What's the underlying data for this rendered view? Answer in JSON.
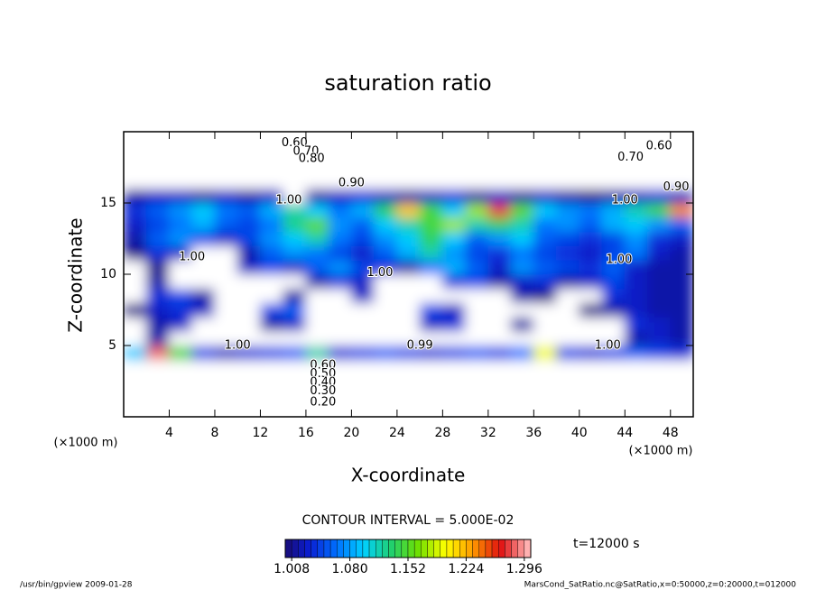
{
  "chart_data": {
    "type": "heatmap",
    "title": "saturation ratio",
    "x_label": "X-coordinate",
    "y_label": "Z-coordinate",
    "x_unit": "(×1000 m)",
    "y_unit": "(×1000 m)",
    "contour_interval": "CONTOUR INTERVAL = 5.000E-02",
    "time": "t=12000 s",
    "footer_left": "/usr/bin/gpview  2009-01-28",
    "footer_right": "MarsCond_SatRatio.nc@SatRatio,x=0:50000,z=0:20000,t=012000",
    "xlim": [
      0,
      50
    ],
    "ylim": [
      0,
      20
    ],
    "xticks": [
      4,
      8,
      12,
      16,
      20,
      24,
      28,
      32,
      36,
      40,
      44,
      48
    ],
    "yticks": [
      5,
      10,
      15
    ],
    "below_color": "#ffffff",
    "colormap": [
      "#1b0a6a",
      "#0a1ed2",
      "#0070ff",
      "#00d0ff",
      "#20d070",
      "#70e000",
      "#ffff00",
      "#ff9a00",
      "#e01010",
      "#ffb0b0"
    ],
    "colorbar": {
      "lim": [
        1.0,
        1.304
      ],
      "step": 0.008,
      "ticks": [
        1.008,
        {
          "value": 1.08,
          "label": "1.080"
        },
        1.152,
        1.224,
        1.296
      ]
    },
    "x": [
      1,
      3,
      5,
      7,
      9,
      11,
      13,
      15,
      17,
      19,
      21,
      23,
      25,
      27,
      29,
      31,
      33,
      35,
      37,
      39,
      41,
      43,
      45,
      47,
      49
    ],
    "z": [
      0.5,
      1.5,
      2.5,
      3.5,
      4.5,
      5.5,
      6.5,
      7.5,
      8.5,
      9.5,
      10.5,
      11.5,
      12.5,
      13.5,
      14.5,
      15.5,
      16.5,
      17.5,
      18.5,
      19.5
    ],
    "values": [
      [
        0.2,
        0.2,
        0.2,
        0.2,
        0.2,
        0.2,
        0.2,
        0.2,
        0.2,
        0.2,
        0.2,
        0.2,
        0.2,
        0.2,
        0.2,
        0.2,
        0.2,
        0.2,
        0.2,
        0.2,
        0.2,
        0.2,
        0.2,
        0.2,
        0.2
      ],
      [
        0.4,
        0.4,
        0.4,
        0.4,
        0.4,
        0.4,
        0.4,
        0.4,
        0.4,
        0.4,
        0.4,
        0.4,
        0.4,
        0.4,
        0.4,
        0.4,
        0.4,
        0.4,
        0.4,
        0.4,
        0.4,
        0.4,
        0.4,
        0.4,
        0.4
      ],
      [
        0.6,
        0.6,
        0.6,
        0.6,
        0.6,
        0.6,
        0.6,
        0.6,
        0.6,
        0.6,
        0.6,
        0.6,
        0.6,
        0.6,
        0.6,
        0.6,
        0.6,
        0.6,
        0.6,
        0.6,
        0.6,
        0.6,
        0.6,
        0.6,
        0.6
      ],
      [
        0.85,
        0.85,
        0.85,
        0.85,
        0.85,
        0.85,
        0.85,
        0.85,
        0.85,
        0.85,
        0.85,
        0.85,
        0.85,
        0.85,
        0.85,
        0.85,
        0.85,
        0.85,
        0.85,
        0.85,
        0.85,
        0.85,
        0.85,
        0.85,
        0.85
      ],
      [
        1.1,
        1.29,
        1.15,
        1.05,
        1.03,
        1.04,
        1.05,
        1.06,
        1.12,
        1.04,
        1.05,
        1.06,
        1.05,
        1.04,
        1.05,
        1.06,
        1.05,
        1.07,
        1.2,
        1.05,
        1.04,
        1.05,
        1.06,
        1.05,
        1.04
      ],
      [
        1.0,
        1.02,
        1.0,
        0.99,
        0.98,
        0.99,
        1.0,
        0.99,
        0.98,
        0.99,
        0.99,
        0.98,
        0.99,
        1.0,
        0.99,
        0.98,
        0.99,
        1.0,
        0.99,
        0.98,
        0.99,
        1.0,
        1.02,
        1.03,
        1.02
      ],
      [
        1.0,
        1.02,
        1.03,
        0.99,
        0.98,
        0.99,
        1.02,
        1.03,
        0.99,
        0.98,
        0.99,
        1.0,
        0.99,
        1.03,
        1.04,
        1.0,
        0.99,
        1.02,
        0.99,
        0.98,
        0.99,
        1.0,
        1.04,
        1.03,
        1.02
      ],
      [
        1.01,
        1.03,
        1.04,
        1.03,
        1.0,
        0.99,
        1.05,
        1.06,
        1.0,
        0.99,
        0.98,
        0.99,
        1.0,
        1.05,
        1.03,
        0.99,
        0.98,
        0.99,
        1.0,
        0.99,
        1.01,
        1.02,
        1.03,
        1.02,
        1.02
      ],
      [
        1.0,
        1.04,
        1.05,
        1.02,
        1.0,
        0.99,
        1.0,
        1.02,
        0.99,
        0.98,
        1.03,
        0.99,
        0.98,
        0.99,
        1.0,
        0.99,
        1.0,
        1.02,
        1.01,
        1.0,
        0.99,
        1.04,
        1.03,
        1.02,
        1.02
      ],
      [
        0.99,
        1.02,
        1.0,
        0.99,
        0.98,
        0.99,
        1.0,
        0.99,
        1.02,
        1.04,
        1.03,
        0.99,
        0.98,
        0.99,
        1.04,
        1.05,
        1.02,
        1.03,
        1.04,
        1.02,
        1.03,
        1.05,
        1.03,
        1.02,
        1.02
      ],
      [
        1.0,
        1.01,
        0.99,
        0.98,
        0.99,
        1.03,
        1.05,
        1.03,
        1.06,
        1.08,
        1.05,
        1.04,
        1.02,
        1.07,
        1.09,
        1.06,
        1.03,
        1.08,
        1.06,
        1.05,
        1.04,
        1.06,
        1.03,
        1.02,
        1.02
      ],
      [
        1.01,
        1.04,
        1.03,
        1.0,
        0.99,
        1.02,
        1.06,
        1.08,
        1.07,
        1.05,
        1.03,
        1.06,
        1.09,
        1.12,
        1.08,
        1.05,
        1.04,
        1.07,
        1.05,
        1.04,
        1.03,
        1.05,
        1.07,
        1.03,
        1.02
      ],
      [
        1.02,
        1.06,
        1.08,
        1.05,
        1.03,
        1.05,
        1.08,
        1.1,
        1.12,
        1.07,
        1.05,
        1.08,
        1.1,
        1.14,
        1.1,
        1.06,
        1.08,
        1.1,
        1.06,
        1.05,
        1.04,
        1.05,
        1.08,
        1.04,
        1.03
      ],
      [
        1.03,
        1.05,
        1.07,
        1.09,
        1.06,
        1.05,
        1.07,
        1.13,
        1.16,
        1.08,
        1.06,
        1.1,
        1.12,
        1.15,
        1.18,
        1.12,
        1.14,
        1.12,
        1.07,
        1.08,
        1.06,
        1.09,
        1.1,
        1.08,
        1.06
      ],
      [
        1.04,
        1.06,
        1.08,
        1.1,
        1.07,
        1.06,
        1.09,
        1.12,
        1.1,
        1.07,
        1.09,
        1.14,
        1.22,
        1.15,
        1.1,
        1.18,
        1.28,
        1.16,
        1.1,
        1.08,
        1.07,
        1.09,
        1.12,
        1.15,
        1.24
      ],
      [
        1.02,
        1.03,
        1.03,
        1.02,
        1.03,
        1.02,
        1.03,
        0.99,
        1.02,
        1.03,
        1.04,
        1.03,
        1.02,
        1.03,
        1.04,
        1.02,
        1.03,
        1.02,
        1.03,
        1.02,
        1.01,
        1.02,
        1.03,
        1.04,
        1.03
      ],
      [
        0.95,
        0.95,
        0.95,
        0.95,
        0.95,
        0.95,
        0.95,
        0.95,
        0.95,
        0.95,
        0.95,
        0.95,
        0.95,
        0.95,
        0.95,
        0.95,
        0.95,
        0.95,
        0.95,
        0.95,
        0.95,
        0.95,
        0.95,
        0.95,
        0.95
      ],
      [
        0.9,
        0.9,
        0.9,
        0.9,
        0.9,
        0.9,
        0.9,
        0.9,
        0.9,
        0.9,
        0.9,
        0.9,
        0.9,
        0.9,
        0.9,
        0.9,
        0.9,
        0.9,
        0.9,
        0.9,
        0.9,
        0.9,
        0.9,
        0.9,
        0.9
      ],
      [
        0.8,
        0.8,
        0.8,
        0.8,
        0.8,
        0.8,
        0.8,
        0.8,
        0.8,
        0.8,
        0.8,
        0.8,
        0.8,
        0.8,
        0.8,
        0.8,
        0.8,
        0.8,
        0.8,
        0.8,
        0.8,
        0.8,
        0.8,
        0.8,
        0.8
      ],
      [
        0.7,
        0.7,
        0.7,
        0.7,
        0.7,
        0.7,
        0.7,
        0.7,
        0.7,
        0.7,
        0.7,
        0.7,
        0.7,
        0.7,
        0.7,
        0.7,
        0.7,
        0.7,
        0.7,
        0.7,
        0.7,
        0.7,
        0.7,
        0.7,
        0.7
      ]
    ],
    "contour_labels": [
      {
        "label": "0.60",
        "x": 15,
        "z": 19.2
      },
      {
        "label": "0.70",
        "x": 16,
        "z": 18.6
      },
      {
        "label": "0.80",
        "x": 16.5,
        "z": 18.1
      },
      {
        "label": "0.90",
        "x": 20,
        "z": 16.4
      },
      {
        "label": "0.60",
        "x": 47,
        "z": 19
      },
      {
        "label": "0.70",
        "x": 44.5,
        "z": 18.2
      },
      {
        "label": "0.90",
        "x": 48.5,
        "z": 16.1
      },
      {
        "label": "1.00",
        "x": 14.5,
        "z": 15.2
      },
      {
        "label": "1.00",
        "x": 44,
        "z": 15.2
      },
      {
        "label": "1.00",
        "x": 6,
        "z": 11.2
      },
      {
        "label": "1.00",
        "x": 22.5,
        "z": 10.1
      },
      {
        "label": "1.00",
        "x": 43.5,
        "z": 11
      },
      {
        "label": "1.00",
        "x": 10,
        "z": 5
      },
      {
        "label": "0.99",
        "x": 26,
        "z": 5
      },
      {
        "label": "1.00",
        "x": 42.5,
        "z": 5
      },
      {
        "label": "0.60",
        "x": 17.5,
        "z": 3.6
      },
      {
        "label": "0.50",
        "x": 17.5,
        "z": 3.0
      },
      {
        "label": "0.40",
        "x": 17.5,
        "z": 2.4
      },
      {
        "label": "0.30",
        "x": 17.5,
        "z": 1.8
      },
      {
        "label": "0.20",
        "x": 17.5,
        "z": 1.0
      }
    ]
  }
}
